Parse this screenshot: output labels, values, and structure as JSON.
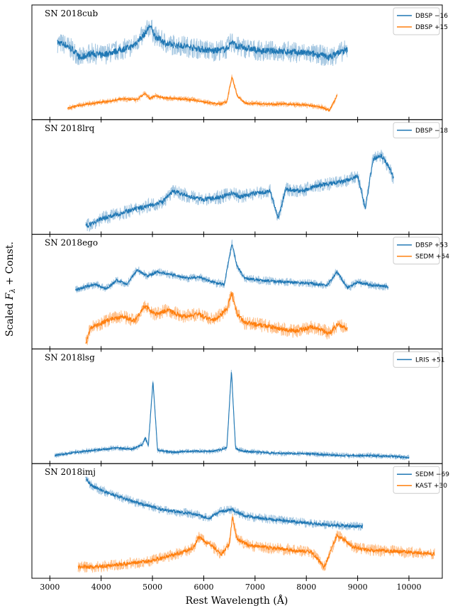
{
  "chart_data": {
    "type": "line",
    "xlabel": "Rest Wavelength (Å)",
    "ylabel": "Scaled F_λ + Const.",
    "ylabel_parts": {
      "pre": "Scaled ",
      "var": "F",
      "sub": "λ",
      "post": " + Const."
    },
    "xlim": [
      2650,
      10650
    ],
    "xticks": [
      3000,
      4000,
      5000,
      6000,
      7000,
      8000,
      9000,
      10000
    ],
    "colors": {
      "blue": "#1f77b4",
      "blue_light": "#a6c8e2",
      "orange": "#ff7f0e",
      "orange_light": "#ffc18c"
    },
    "panels": [
      {
        "name": "SN 2018cub",
        "series": [
          {
            "label": "DBSP −16",
            "color": "#1f77b4",
            "noise": 0.045,
            "wave": [
              3150,
              3300,
              3450,
              3600,
              3800,
              4000,
              4300,
              4600,
              4850,
              4950,
              5050,
              5300,
              5600,
              5900,
              6200,
              6450,
              6550,
              6650,
              6800,
              7100,
              7400,
              7700,
              8000,
              8300,
              8450,
              8600,
              8800
            ],
            "flux": [
              0.7,
              0.68,
              0.63,
              0.55,
              0.6,
              0.58,
              0.62,
              0.66,
              0.78,
              0.86,
              0.76,
              0.68,
              0.67,
              0.64,
              0.62,
              0.64,
              0.71,
              0.66,
              0.65,
              0.62,
              0.62,
              0.61,
              0.6,
              0.58,
              0.56,
              0.6,
              0.63
            ]
          },
          {
            "label": "DBSP +15",
            "color": "#ff7f0e",
            "noise": 0.012,
            "wave": [
              3350,
              3500,
              3700,
              3900,
              4200,
              4400,
              4700,
              4850,
              4950,
              5050,
              5200,
              5500,
              5800,
              6000,
              6300,
              6450,
              6550,
              6650,
              6800,
              7200,
              7600,
              8000,
              8300,
              8450,
              8600
            ],
            "flux": [
              0.08,
              0.1,
              0.12,
              0.13,
              0.15,
              0.17,
              0.16,
              0.22,
              0.17,
              0.2,
              0.18,
              0.17,
              0.16,
              0.14,
              0.12,
              0.14,
              0.38,
              0.2,
              0.13,
              0.12,
              0.12,
              0.11,
              0.09,
              0.06,
              0.2
            ]
          }
        ]
      },
      {
        "name": "SN 2018lrq",
        "series": [
          {
            "label": "DBSP −18",
            "color": "#1f77b4",
            "noise": 0.03,
            "wave": [
              3700,
              3850,
              4000,
              4300,
              4600,
              4900,
              5200,
              5400,
              5700,
              6000,
              6300,
              6550,
              6700,
              7000,
              7300,
              7450,
              7600,
              7900,
              8200,
              8500,
              8800,
              9000,
              9150,
              9300,
              9450,
              9600,
              9700
            ],
            "flux": [
              0.05,
              0.08,
              0.12,
              0.16,
              0.2,
              0.24,
              0.28,
              0.38,
              0.33,
              0.3,
              0.32,
              0.36,
              0.33,
              0.36,
              0.38,
              0.12,
              0.4,
              0.38,
              0.43,
              0.45,
              0.48,
              0.52,
              0.22,
              0.68,
              0.72,
              0.62,
              0.5
            ]
          }
        ]
      },
      {
        "name": "SN 2018ego",
        "series": [
          {
            "label": "DBSP +53",
            "color": "#1f77b4",
            "noise": 0.018,
            "wave": [
              3500,
              3700,
              3900,
              4100,
              4300,
              4500,
              4700,
              4900,
              5100,
              5400,
              5700,
              5900,
              6200,
              6400,
              6550,
              6650,
              6800,
              7100,
              7400,
              7800,
              8100,
              8400,
              8600,
              8800,
              9000,
              9300,
              9600
            ],
            "flux": [
              0.53,
              0.56,
              0.58,
              0.54,
              0.62,
              0.58,
              0.72,
              0.66,
              0.7,
              0.67,
              0.64,
              0.65,
              0.6,
              0.58,
              0.97,
              0.75,
              0.64,
              0.62,
              0.61,
              0.6,
              0.59,
              0.57,
              0.7,
              0.55,
              0.6,
              0.57,
              0.56
            ]
          },
          {
            "label": "SEDM +54",
            "color": "#ff7f0e",
            "noise": 0.03,
            "wave": [
              3700,
              3800,
              3950,
              4150,
              4400,
              4650,
              4850,
              5050,
              5300,
              5600,
              5900,
              6200,
              6450,
              6550,
              6650,
              6800,
              7100,
              7400,
              7800,
              8100,
              8300,
              8450,
              8600,
              8800
            ],
            "flux": [
              0.02,
              0.18,
              0.2,
              0.25,
              0.28,
              0.24,
              0.38,
              0.3,
              0.34,
              0.28,
              0.3,
              0.24,
              0.35,
              0.5,
              0.3,
              0.22,
              0.2,
              0.17,
              0.14,
              0.18,
              0.15,
              0.12,
              0.2,
              0.17
            ]
          }
        ]
      },
      {
        "name": "SN 2018lsg",
        "series": [
          {
            "label": "LRIS +51",
            "color": "#1f77b4",
            "noise": 0.012,
            "wave": [
              3100,
              3500,
              3900,
              4300,
              4600,
              4800,
              4860,
              4920,
              4960,
              5010,
              5100,
              5400,
              5800,
              6200,
              6450,
              6540,
              6620,
              6760,
              7100,
              7500,
              7900,
              8300,
              8700,
              9200,
              9700,
              10000
            ],
            "flux": [
              0.05,
              0.08,
              0.1,
              0.12,
              0.11,
              0.15,
              0.22,
              0.14,
              0.42,
              0.75,
              0.1,
              0.08,
              0.09,
              0.09,
              0.12,
              0.85,
              0.12,
              0.09,
              0.08,
              0.07,
              0.07,
              0.06,
              0.05,
              0.05,
              0.04,
              0.03
            ]
          }
        ]
      },
      {
        "name": "SN 2018imj",
        "series": [
          {
            "label": "SEDM −69",
            "color": "#1f77b4",
            "noise": 0.02,
            "wave": [
              3700,
              3800,
              4000,
              4300,
              4600,
              4900,
              5200,
              5500,
              5800,
              6100,
              6300,
              6550,
              6800,
              7100,
              7500,
              7900,
              8300,
              8700,
              9100
            ],
            "flux": [
              0.92,
              0.85,
              0.8,
              0.75,
              0.7,
              0.66,
              0.62,
              0.6,
              0.58,
              0.54,
              0.6,
              0.62,
              0.56,
              0.54,
              0.52,
              0.5,
              0.48,
              0.47,
              0.46
            ]
          },
          {
            "label": "KAST +30",
            "color": "#ff7f0e",
            "noise": 0.025,
            "wave": [
              3550,
              3900,
              4300,
              4700,
              5000,
              5300,
              5600,
              5800,
              5900,
              6100,
              6350,
              6500,
              6560,
              6650,
              6900,
              7300,
              7700,
              8100,
              8350,
              8450,
              8600,
              8700,
              8900,
              9200,
              9600,
              10000,
              10500
            ],
            "flux": [
              0.08,
              0.08,
              0.1,
              0.12,
              0.14,
              0.18,
              0.22,
              0.26,
              0.36,
              0.3,
              0.2,
              0.3,
              0.55,
              0.34,
              0.28,
              0.26,
              0.24,
              0.22,
              0.08,
              0.2,
              0.38,
              0.35,
              0.27,
              0.24,
              0.23,
              0.22,
              0.2
            ]
          }
        ]
      }
    ]
  }
}
